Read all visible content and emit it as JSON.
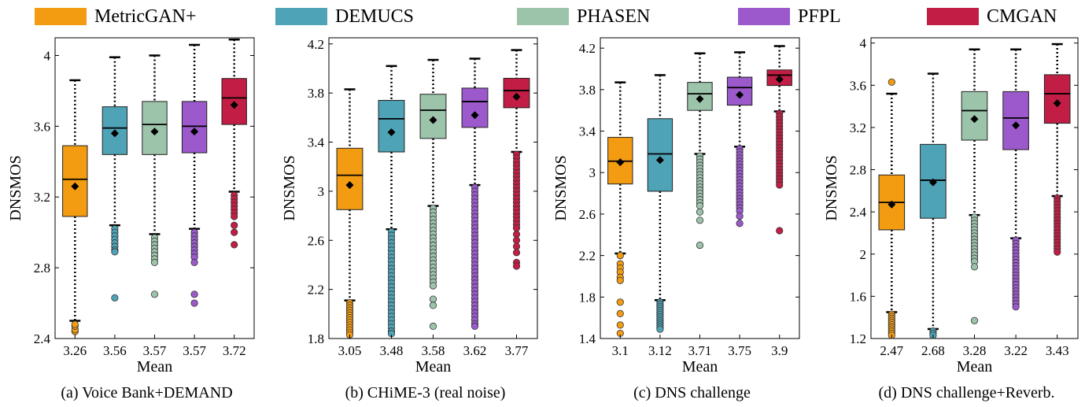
{
  "legend": [
    {
      "label": "MetricGAN+",
      "color": "#F39C12"
    },
    {
      "label": "DEMUCS",
      "color": "#4FA3B6"
    },
    {
      "label": "PHASEN",
      "color": "#9CC4AB"
    },
    {
      "label": "PFPL",
      "color": "#9B59CC"
    },
    {
      "label": "CMGAN",
      "color": "#C21E45"
    }
  ],
  "chart_data": [
    {
      "type": "box",
      "caption": "(a) Voice Bank+DEMAND",
      "ylabel": "DNSMOS",
      "xlabel": "Mean",
      "ylim": [
        2.4,
        4.1
      ],
      "yticks": [
        2.4,
        2.8,
        3.2,
        3.6,
        4
      ],
      "ytick_labels": [
        "2.4",
        "2.8",
        "3.2",
        "3.6",
        "4"
      ],
      "categories": [
        "3.26",
        "3.56",
        "3.57",
        "3.57",
        "3.72"
      ],
      "series": [
        {
          "name": "MetricGAN+",
          "q1": 3.09,
          "median": 3.3,
          "q3": 3.49,
          "mean": 3.26,
          "whisker_low": 2.5,
          "whisker_high": 3.86,
          "outliers": [
            2.44,
            2.45,
            2.47,
            2.48
          ]
        },
        {
          "name": "DEMUCS",
          "q1": 3.44,
          "median": 3.59,
          "q3": 3.71,
          "mean": 3.56,
          "whisker_low": 3.04,
          "whisker_high": 3.99,
          "outliers": [
            3.02,
            3.0,
            2.98,
            2.96,
            2.94,
            2.92,
            2.9,
            2.89,
            2.63
          ]
        },
        {
          "name": "PHASEN",
          "q1": 3.44,
          "median": 3.61,
          "q3": 3.74,
          "mean": 3.57,
          "whisker_low": 2.99,
          "whisker_high": 4.0,
          "outliers": [
            2.97,
            2.95,
            2.93,
            2.91,
            2.89,
            2.87,
            2.85,
            2.83,
            2.65
          ]
        },
        {
          "name": "PFPL",
          "q1": 3.45,
          "median": 3.6,
          "q3": 3.74,
          "mean": 3.57,
          "whisker_low": 3.02,
          "whisker_high": 4.06,
          "outliers": [
            3.0,
            2.98,
            2.96,
            2.94,
            2.92,
            2.9,
            2.88,
            2.86,
            2.83,
            2.65,
            2.6
          ]
        },
        {
          "name": "CMGAN",
          "q1": 3.61,
          "median": 3.76,
          "q3": 3.87,
          "mean": 3.72,
          "whisker_low": 3.23,
          "whisker_high": 4.09,
          "outliers": [
            3.21,
            3.19,
            3.17,
            3.15,
            3.13,
            3.11,
            3.09,
            3.04,
            3.0,
            2.93
          ]
        }
      ]
    },
    {
      "type": "box",
      "caption": "(b) CHiME-3 (real noise)",
      "ylabel": "DNSMOS",
      "xlabel": "Mean",
      "ylim": [
        1.8,
        4.25
      ],
      "yticks": [
        1.8,
        2.2,
        2.6,
        3,
        3.4,
        3.8,
        4.2
      ],
      "ytick_labels": [
        "1.8",
        "2.2",
        "2.6",
        "3",
        "3.4",
        "3.8",
        "4.2"
      ],
      "categories": [
        "3.05",
        "3.48",
        "3.58",
        "3.62",
        "3.77"
      ],
      "series": [
        {
          "name": "MetricGAN+",
          "q1": 2.85,
          "median": 3.13,
          "q3": 3.35,
          "mean": 3.05,
          "whisker_low": 2.11,
          "whisker_high": 3.83,
          "outliers": [
            2.09,
            2.07,
            2.05,
            2.03,
            2.01,
            1.99,
            1.97,
            1.95,
            1.93,
            1.91,
            1.89,
            1.87,
            1.85,
            1.83
          ]
        },
        {
          "name": "DEMUCS",
          "q1": 3.32,
          "median": 3.59,
          "q3": 3.74,
          "mean": 3.48,
          "whisker_low": 2.69,
          "whisker_high": 4.02,
          "outliers": [
            2.67,
            2.64,
            2.61,
            2.58,
            2.55,
            2.52,
            2.49,
            2.46,
            2.43,
            2.4,
            2.37,
            2.34,
            2.31,
            2.28,
            2.25,
            2.22,
            2.19,
            2.16,
            2.13,
            2.1,
            2.07,
            2.04,
            2.01,
            1.98,
            1.95,
            1.92,
            1.89,
            1.86,
            1.84
          ]
        },
        {
          "name": "PHASEN",
          "q1": 3.43,
          "median": 3.66,
          "q3": 3.79,
          "mean": 3.58,
          "whisker_low": 2.88,
          "whisker_high": 4.07,
          "outliers": [
            2.86,
            2.83,
            2.8,
            2.77,
            2.74,
            2.71,
            2.68,
            2.65,
            2.62,
            2.59,
            2.56,
            2.53,
            2.5,
            2.47,
            2.44,
            2.41,
            2.38,
            2.35,
            2.32,
            2.29,
            2.26,
            2.23,
            2.12,
            2.07,
            1.9
          ]
        },
        {
          "name": "PFPL",
          "q1": 3.52,
          "median": 3.73,
          "q3": 3.84,
          "mean": 3.62,
          "whisker_low": 3.05,
          "whisker_high": 4.08,
          "outliers": [
            3.03,
            3.0,
            2.97,
            2.94,
            2.91,
            2.88,
            2.85,
            2.82,
            2.79,
            2.76,
            2.73,
            2.7,
            2.67,
            2.64,
            2.61,
            2.58,
            2.55,
            2.52,
            2.49,
            2.46,
            2.43,
            2.4,
            2.37,
            2.34,
            2.31,
            2.28,
            2.25,
            2.22,
            2.19,
            2.16,
            2.13,
            2.1,
            2.07,
            2.04,
            2.01,
            1.98,
            1.95,
            1.92,
            1.9
          ]
        },
        {
          "name": "CMGAN",
          "q1": 3.68,
          "median": 3.82,
          "q3": 3.92,
          "mean": 3.77,
          "whisker_low": 3.32,
          "whisker_high": 4.15,
          "outliers": [
            3.3,
            3.27,
            3.24,
            3.21,
            3.18,
            3.15,
            3.12,
            3.09,
            3.06,
            3.03,
            3.0,
            2.97,
            2.94,
            2.91,
            2.88,
            2.85,
            2.82,
            2.79,
            2.76,
            2.73,
            2.7,
            2.65,
            2.6,
            2.55,
            2.5,
            2.42,
            2.39
          ]
        }
      ]
    },
    {
      "type": "box",
      "caption": "(c) DNS challenge",
      "ylabel": "DNSMOS",
      "xlabel": "Mean",
      "ylim": [
        1.4,
        4.3
      ],
      "yticks": [
        1.4,
        1.8,
        2.2,
        2.6,
        3,
        3.4,
        3.8,
        4.2
      ],
      "ytick_labels": [
        "1.4",
        "1.8",
        "2.2",
        "2.6",
        "3",
        "3.4",
        "3.8",
        "4.2"
      ],
      "categories": [
        "3.1",
        "3.12",
        "3.71",
        "3.75",
        "3.9"
      ],
      "series": [
        {
          "name": "MetricGAN+",
          "q1": 2.89,
          "median": 3.11,
          "q3": 3.34,
          "mean": 3.1,
          "whisker_low": 2.22,
          "whisker_high": 3.87,
          "outliers": [
            2.2,
            2.12,
            2.08,
            2.04,
            1.99,
            1.96,
            1.75,
            1.64,
            1.53,
            1.45
          ]
        },
        {
          "name": "DEMUCS",
          "q1": 2.82,
          "median": 3.18,
          "q3": 3.52,
          "mean": 3.12,
          "whisker_low": 1.77,
          "whisker_high": 3.94,
          "outliers": [
            1.75,
            1.73,
            1.71,
            1.69,
            1.67,
            1.65,
            1.63,
            1.61,
            1.59,
            1.57,
            1.55,
            1.53,
            1.51,
            1.49
          ]
        },
        {
          "name": "PHASEN",
          "q1": 3.6,
          "median": 3.76,
          "q3": 3.87,
          "mean": 3.71,
          "whisker_low": 3.18,
          "whisker_high": 4.15,
          "outliers": [
            3.16,
            3.13,
            3.1,
            3.07,
            3.04,
            3.01,
            2.98,
            2.95,
            2.92,
            2.89,
            2.86,
            2.83,
            2.8,
            2.77,
            2.74,
            2.71,
            2.68,
            2.62,
            2.54,
            2.3
          ]
        },
        {
          "name": "PFPL",
          "q1": 3.65,
          "median": 3.82,
          "q3": 3.92,
          "mean": 3.75,
          "whisker_low": 3.25,
          "whisker_high": 4.16,
          "outliers": [
            3.23,
            3.2,
            3.17,
            3.14,
            3.11,
            3.08,
            3.05,
            3.02,
            2.99,
            2.96,
            2.93,
            2.9,
            2.87,
            2.84,
            2.81,
            2.78,
            2.75,
            2.72,
            2.69,
            2.66,
            2.63,
            2.58,
            2.51
          ]
        },
        {
          "name": "CMGAN",
          "q1": 3.84,
          "median": 3.94,
          "q3": 3.99,
          "mean": 3.9,
          "whisker_low": 3.59,
          "whisker_high": 4.22,
          "outliers": [
            3.57,
            3.54,
            3.51,
            3.48,
            3.45,
            3.42,
            3.39,
            3.36,
            3.33,
            3.3,
            3.27,
            3.24,
            3.21,
            3.18,
            3.15,
            3.12,
            3.09,
            3.06,
            3.03,
            3.0,
            2.97,
            2.94,
            2.91,
            2.88,
            2.44
          ]
        }
      ]
    },
    {
      "type": "box",
      "caption": "(d) DNS challenge+Reverb.",
      "ylabel": "DNSMOS",
      "xlabel": "Mean",
      "ylim": [
        1.2,
        4.05
      ],
      "yticks": [
        1.2,
        1.6,
        2,
        2.4,
        2.8,
        3.2,
        3.6,
        4
      ],
      "ytick_labels": [
        "1.2",
        "1.6",
        "2",
        "2.4",
        "2.8",
        "3.2",
        "3.6",
        "4"
      ],
      "categories": [
        "2.47",
        "2.68",
        "3.28",
        "3.22",
        "3.43"
      ],
      "series": [
        {
          "name": "MetricGAN+",
          "q1": 2.23,
          "median": 2.49,
          "q3": 2.75,
          "mean": 2.47,
          "whisker_low": 1.45,
          "whisker_high": 3.52,
          "outliers": [
            3.63,
            1.43,
            1.41,
            1.39,
            1.37,
            1.35,
            1.33,
            1.31,
            1.29,
            1.27,
            1.25,
            1.23
          ]
        },
        {
          "name": "DEMUCS",
          "q1": 2.34,
          "median": 2.7,
          "q3": 3.04,
          "mean": 2.68,
          "whisker_low": 1.29,
          "whisker_high": 3.71,
          "outliers": [
            1.27,
            1.25,
            1.23
          ]
        },
        {
          "name": "PHASEN",
          "q1": 3.08,
          "median": 3.36,
          "q3": 3.54,
          "mean": 3.28,
          "whisker_low": 2.37,
          "whisker_high": 3.94,
          "outliers": [
            2.35,
            2.32,
            2.29,
            2.26,
            2.23,
            2.2,
            2.17,
            2.14,
            2.11,
            2.08,
            2.05,
            2.02,
            1.99,
            1.96,
            1.93,
            1.88,
            1.37
          ]
        },
        {
          "name": "PFPL",
          "q1": 2.99,
          "median": 3.29,
          "q3": 3.54,
          "mean": 3.22,
          "whisker_low": 2.15,
          "whisker_high": 3.94,
          "outliers": [
            2.13,
            2.1,
            2.07,
            2.04,
            2.01,
            1.98,
            1.95,
            1.92,
            1.89,
            1.86,
            1.83,
            1.8,
            1.77,
            1.74,
            1.71,
            1.68,
            1.65,
            1.62,
            1.59,
            1.56,
            1.53,
            1.5
          ]
        },
        {
          "name": "CMGAN",
          "q1": 3.24,
          "median": 3.52,
          "q3": 3.7,
          "mean": 3.43,
          "whisker_low": 2.55,
          "whisker_high": 3.99,
          "outliers": [
            2.53,
            2.5,
            2.47,
            2.44,
            2.41,
            2.38,
            2.35,
            2.32,
            2.29,
            2.26,
            2.23,
            2.2,
            2.17,
            2.14,
            2.11,
            2.08,
            2.05,
            2.02
          ]
        }
      ]
    }
  ]
}
